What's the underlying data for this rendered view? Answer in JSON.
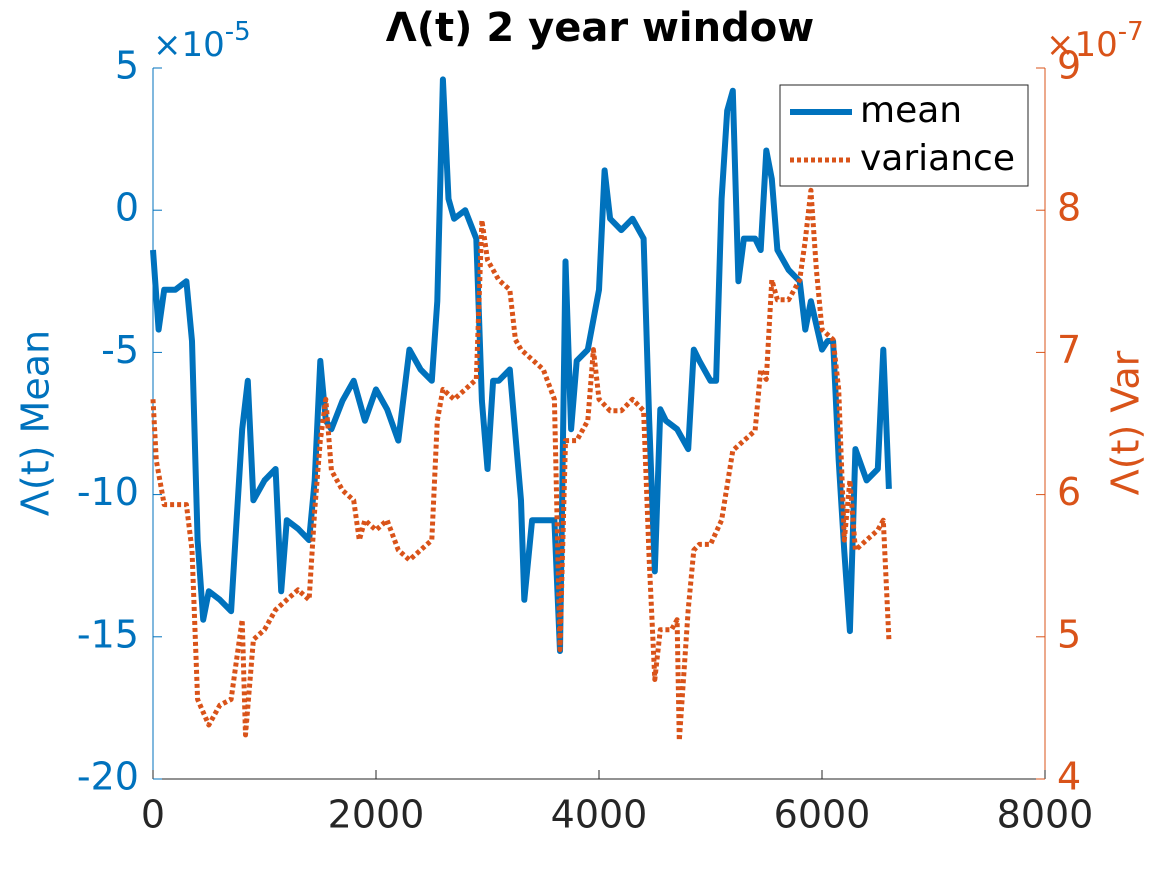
{
  "chart_data": {
    "type": "line",
    "title": "Λ(t) 2 year window",
    "y_label": "Λ(t) Mean",
    "y2_label": "Λ(t) Var",
    "y_multiplier": {
      "base": "×10",
      "exponent": "-5"
    },
    "y2_multiplier": {
      "base": "×10",
      "exponent": "-7"
    },
    "xlim": [
      0,
      8000
    ],
    "xticks": [
      0,
      2000,
      4000,
      6000,
      8000
    ],
    "ylim": [
      -20,
      5
    ],
    "yticks": [
      -20,
      -15,
      -10,
      -5,
      0,
      5
    ],
    "y2lim": [
      4,
      9
    ],
    "y2ticks": [
      4,
      5,
      6,
      7,
      8,
      9
    ],
    "legend": "northeast",
    "grid": false,
    "series": [
      {
        "name": "mean",
        "color": "#0072BD",
        "style": "solid",
        "x": [
          0,
          50,
          100,
          200,
          300,
          350,
          400,
          450,
          500,
          600,
          700,
          750,
          800,
          850,
          900,
          1000,
          1100,
          1150,
          1200,
          1300,
          1400,
          1450,
          1500,
          1550,
          1600,
          1700,
          1800,
          1900,
          2000,
          2100,
          2200,
          2300,
          2400,
          2500,
          2550,
          2600,
          2650,
          2700,
          2800,
          2900,
          2950,
          3000,
          3050,
          3100,
          3200,
          3300,
          3330,
          3400,
          3500,
          3600,
          3650,
          3700,
          3750,
          3800,
          3900,
          4000,
          4050,
          4100,
          4200,
          4300,
          4400,
          4450,
          4500,
          4550,
          4600,
          4700,
          4800,
          4850,
          4900,
          5000,
          5050,
          5100,
          5150,
          5200,
          5250,
          5300,
          5400,
          5450,
          5500,
          5550,
          5600,
          5700,
          5800,
          5850,
          5900,
          6000,
          6050,
          6100,
          6150,
          6200,
          6250,
          6300,
          6400,
          6500,
          6550,
          6600
        ],
        "values": [
          -1.4,
          -4.2,
          -2.8,
          -2.8,
          -2.5,
          -4.6,
          -11.6,
          -14.4,
          -13.4,
          -13.7,
          -14.1,
          -10.9,
          -7.7,
          -6.0,
          -10.2,
          -9.5,
          -9.1,
          -13.4,
          -10.9,
          -11.2,
          -11.6,
          -9.5,
          -5.3,
          -7.4,
          -7.7,
          -6.7,
          -6.0,
          -7.4,
          -6.3,
          -7.0,
          -8.1,
          -4.9,
          -5.6,
          -6.0,
          -3.2,
          4.6,
          0.4,
          -0.3,
          0.0,
          -1.0,
          -6.7,
          -9.1,
          -6.0,
          -6.0,
          -5.6,
          -10.2,
          -13.7,
          -10.9,
          -10.9,
          -10.9,
          -15.5,
          -1.8,
          -7.7,
          -5.3,
          -4.9,
          -2.8,
          1.4,
          -0.3,
          -0.7,
          -0.3,
          -1.0,
          -7.4,
          -12.7,
          -7.0,
          -7.4,
          -7.7,
          -8.4,
          -4.9,
          -5.3,
          -6.0,
          -6.0,
          0.4,
          3.5,
          4.2,
          -2.5,
          -1.0,
          -1.0,
          -1.4,
          2.1,
          1.1,
          -1.4,
          -2.1,
          -2.5,
          -4.2,
          -3.2,
          -4.9,
          -4.6,
          -4.6,
          -8.8,
          -12.0,
          -14.8,
          -8.4,
          -9.5,
          -9.1,
          -4.9,
          -9.8
        ]
      },
      {
        "name": "variance",
        "color": "#D95319",
        "style": "dotted",
        "axis": "y2",
        "x": [
          0,
          30,
          100,
          300,
          350,
          400,
          500,
          600,
          700,
          750,
          800,
          830,
          900,
          1000,
          1100,
          1200,
          1300,
          1400,
          1450,
          1500,
          1550,
          1600,
          1700,
          1800,
          1850,
          1900,
          2000,
          2100,
          2200,
          2300,
          2400,
          2500,
          2550,
          2600,
          2700,
          2800,
          2900,
          2950,
          3000,
          3100,
          3200,
          3250,
          3300,
          3400,
          3500,
          3600,
          3650,
          3700,
          3800,
          3900,
          3950,
          4000,
          4100,
          4200,
          4300,
          4400,
          4450,
          4500,
          4550,
          4650,
          4700,
          4720,
          4800,
          4850,
          4900,
          5000,
          5100,
          5200,
          5300,
          5400,
          5450,
          5500,
          5550,
          5600,
          5700,
          5800,
          5850,
          5900,
          5950,
          6000,
          6100,
          6150,
          6200,
          6250,
          6300,
          6400,
          6500,
          6550,
          6600
        ],
        "values": [
          6.67,
          6.24,
          5.93,
          5.93,
          5.61,
          4.56,
          4.38,
          4.52,
          4.56,
          4.84,
          5.12,
          4.31,
          4.98,
          5.05,
          5.19,
          5.26,
          5.33,
          5.26,
          5.89,
          6.38,
          6.67,
          6.17,
          6.03,
          5.96,
          5.68,
          5.82,
          5.75,
          5.82,
          5.61,
          5.54,
          5.61,
          5.68,
          6.52,
          6.74,
          6.67,
          6.74,
          6.81,
          7.93,
          7.65,
          7.51,
          7.44,
          7.09,
          7.02,
          6.95,
          6.88,
          6.67,
          4.91,
          6.38,
          6.38,
          6.52,
          7.02,
          6.67,
          6.59,
          6.59,
          6.67,
          6.59,
          5.54,
          4.7,
          5.05,
          5.05,
          5.12,
          4.27,
          5.19,
          5.61,
          5.65,
          5.65,
          5.82,
          6.31,
          6.38,
          6.45,
          6.88,
          6.81,
          7.51,
          7.37,
          7.37,
          7.51,
          7.79,
          8.14,
          7.58,
          7.16,
          7.09,
          6.74,
          5.68,
          6.1,
          5.61,
          5.68,
          5.75,
          5.82,
          4.98
        ]
      }
    ]
  }
}
